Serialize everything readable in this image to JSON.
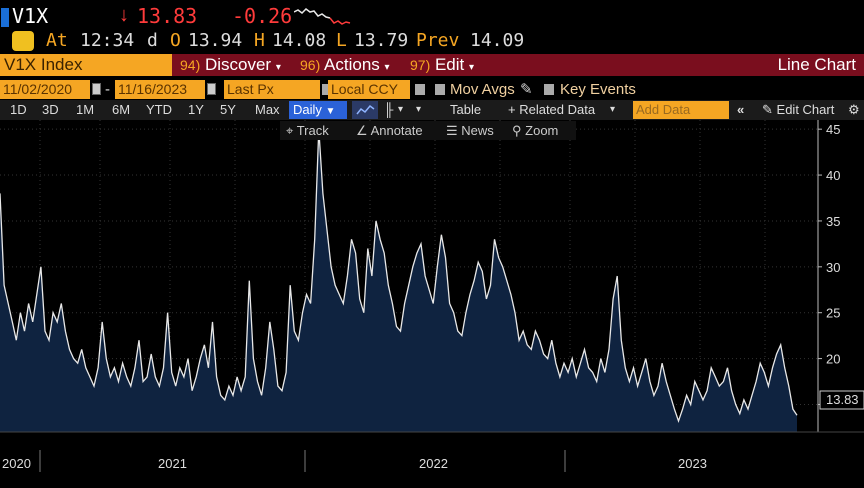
{
  "header": {
    "ticker": "V1X",
    "last_price": "13.83",
    "change": "-0.26"
  },
  "quote": {
    "at_label": "At",
    "time": "12:34",
    "d_label": "d",
    "open_label": "O",
    "open": "13.94",
    "high_label": "H",
    "high": "14.08",
    "low_label": "L",
    "low": "13.79",
    "prev_label": "Prev",
    "prev": "14.09"
  },
  "menu": {
    "index": "V1X Index",
    "discover_num": "94)",
    "discover": "Discover",
    "actions_num": "96)",
    "actions": "Actions",
    "edit_num": "97)",
    "edit": "Edit",
    "chart_type": "Line Chart"
  },
  "range": {
    "start": "11/02/2020",
    "end": "11/16/2023",
    "field": "Last Px",
    "currency": "Local CCY",
    "mov_avgs": "Mov Avgs",
    "key_events": "Key Events"
  },
  "toolbar": {
    "periods": [
      "1D",
      "3D",
      "1M",
      "6M",
      "YTD",
      "1Y",
      "5Y",
      "Max"
    ],
    "frequency": "Daily",
    "table": "Table",
    "related_data": "+ Related Data",
    "add_data_placeholder": "Add Data",
    "edit_chart": "Edit Chart"
  },
  "subtools": {
    "track": "Track",
    "annotate": "Annotate",
    "news": "News",
    "zoom": "Zoom"
  },
  "colors": {
    "accent_orange": "#f5a623",
    "menu_red": "#7a0e1e",
    "down_red": "#ff3b3b",
    "area_fill": "#0f2340",
    "line": "#e8e8e8"
  },
  "chart_data": {
    "type": "area",
    "ylim": [
      12,
      46
    ],
    "yticks": [
      "15",
      "20",
      "25",
      "30",
      "35",
      "40",
      "45"
    ],
    "x_labels": [
      "2020",
      "2021",
      "2022",
      "2023"
    ],
    "last_value_label": "13.83",
    "series": [
      {
        "values": [
          38.0,
          28.0,
          26.0,
          24.0,
          22.0,
          25.0,
          23.0,
          26.0,
          24.0,
          27.0,
          30.0,
          23.0,
          22.0,
          25.0,
          24.0,
          26.0,
          23.0,
          21.0,
          20.0,
          19.5,
          21.0,
          19.0,
          18.0,
          17.0,
          19.0,
          24.0,
          20.0,
          18.0,
          19.0,
          17.5,
          19.5,
          18.0,
          17.0,
          19.0,
          22.0,
          17.5,
          18.0,
          20.5,
          18.0,
          17.0,
          19.0,
          25.0,
          18.5,
          17.0,
          19.0,
          18.0,
          20.0,
          16.5,
          18.0,
          20.0,
          21.5,
          19.0,
          24.0,
          18.0,
          16.0,
          15.5,
          17.0,
          16.0,
          18.0,
          16.5,
          18.0,
          28.5,
          20.0,
          17.5,
          16.0,
          19.0,
          24.0,
          21.0,
          17.0,
          16.5,
          18.5,
          28.0,
          23.0,
          22.0,
          25.0,
          27.0,
          26.0,
          33.0,
          45.0,
          38.0,
          34.0,
          30.0,
          28.0,
          27.0,
          26.0,
          29.0,
          33.0,
          31.5,
          26.5,
          25.0,
          32.0,
          29.0,
          35.0,
          33.0,
          31.5,
          28.0,
          26.0,
          23.5,
          23.0,
          26.0,
          28.0,
          30.0,
          31.5,
          32.5,
          29.0,
          27.5,
          26.0,
          30.0,
          33.5,
          31.0,
          26.0,
          25.0,
          23.0,
          22.5,
          25.0,
          27.0,
          28.5,
          30.5,
          29.5,
          26.5,
          28.0,
          33.0,
          31.0,
          30.0,
          28.5,
          27.0,
          25.0,
          22.0,
          23.0,
          21.5,
          21.0,
          23.0,
          22.0,
          20.5,
          20.0,
          22.0,
          19.5,
          18.0,
          19.5,
          18.5,
          20.0,
          18.0,
          19.5,
          21.0,
          19.0,
          18.5,
          17.5,
          20.0,
          18.5,
          21.0,
          26.5,
          29.0,
          22.0,
          19.0,
          17.5,
          19.0,
          17.0,
          18.5,
          20.0,
          17.5,
          16.0,
          17.0,
          19.5,
          17.5,
          16.0,
          14.5,
          13.2,
          14.5,
          16.0,
          15.0,
          17.5,
          16.5,
          15.5,
          16.5,
          19.0,
          18.0,
          17.0,
          17.5,
          19.0,
          16.5,
          15.0,
          14.0,
          15.5,
          14.5,
          16.0,
          17.5,
          19.5,
          18.5,
          17.0,
          19.0,
          20.5,
          21.5,
          19.0,
          17.0,
          14.5,
          13.83
        ]
      }
    ]
  }
}
